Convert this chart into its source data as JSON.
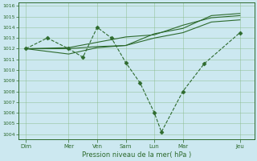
{
  "xlabel": "Pression niveau de la mer( hPa )",
  "xtick_labels": [
    "Dim",
    "Mer",
    "Ven",
    "Sam",
    "Lun",
    "Mar",
    "Jeu"
  ],
  "xtick_positions": [
    0,
    3,
    5,
    7,
    9,
    11,
    15
  ],
  "xlim": [
    -0.5,
    16.0
  ],
  "ylim": [
    1003.5,
    1016.3
  ],
  "ytick_values": [
    1004,
    1005,
    1006,
    1007,
    1008,
    1009,
    1010,
    1011,
    1012,
    1013,
    1014,
    1015,
    1016
  ],
  "bg_color": "#cce8f0",
  "grid_color": "#88bb88",
  "line_color": "#2d6a2d",
  "line1_x": [
    0,
    1.5,
    3,
    4,
    5,
    6,
    7,
    8,
    9,
    9.5,
    11,
    12.5,
    15
  ],
  "line1_y": [
    1012.0,
    1013.0,
    1012.0,
    1011.2,
    1014.0,
    1013.0,
    1010.7,
    1008.8,
    1006.0,
    1004.2,
    1008.0,
    1010.6,
    1013.5
  ],
  "line2_x": [
    0,
    3,
    5,
    7,
    9,
    11,
    13,
    15
  ],
  "line2_y": [
    1012.0,
    1012.0,
    1012.2,
    1012.3,
    1013.0,
    1013.5,
    1014.5,
    1014.7
  ],
  "line3_x": [
    0,
    3,
    5,
    7,
    9,
    11,
    13,
    15
  ],
  "line3_y": [
    1012.0,
    1012.1,
    1012.6,
    1013.1,
    1013.3,
    1014.2,
    1014.9,
    1015.1
  ],
  "line4_x": [
    0,
    3,
    5,
    7,
    9,
    11,
    13,
    15
  ],
  "line4_y": [
    1012.0,
    1011.5,
    1012.1,
    1012.3,
    1013.4,
    1013.9,
    1015.1,
    1015.3
  ],
  "figsize": [
    3.2,
    2.0
  ],
  "dpi": 100
}
